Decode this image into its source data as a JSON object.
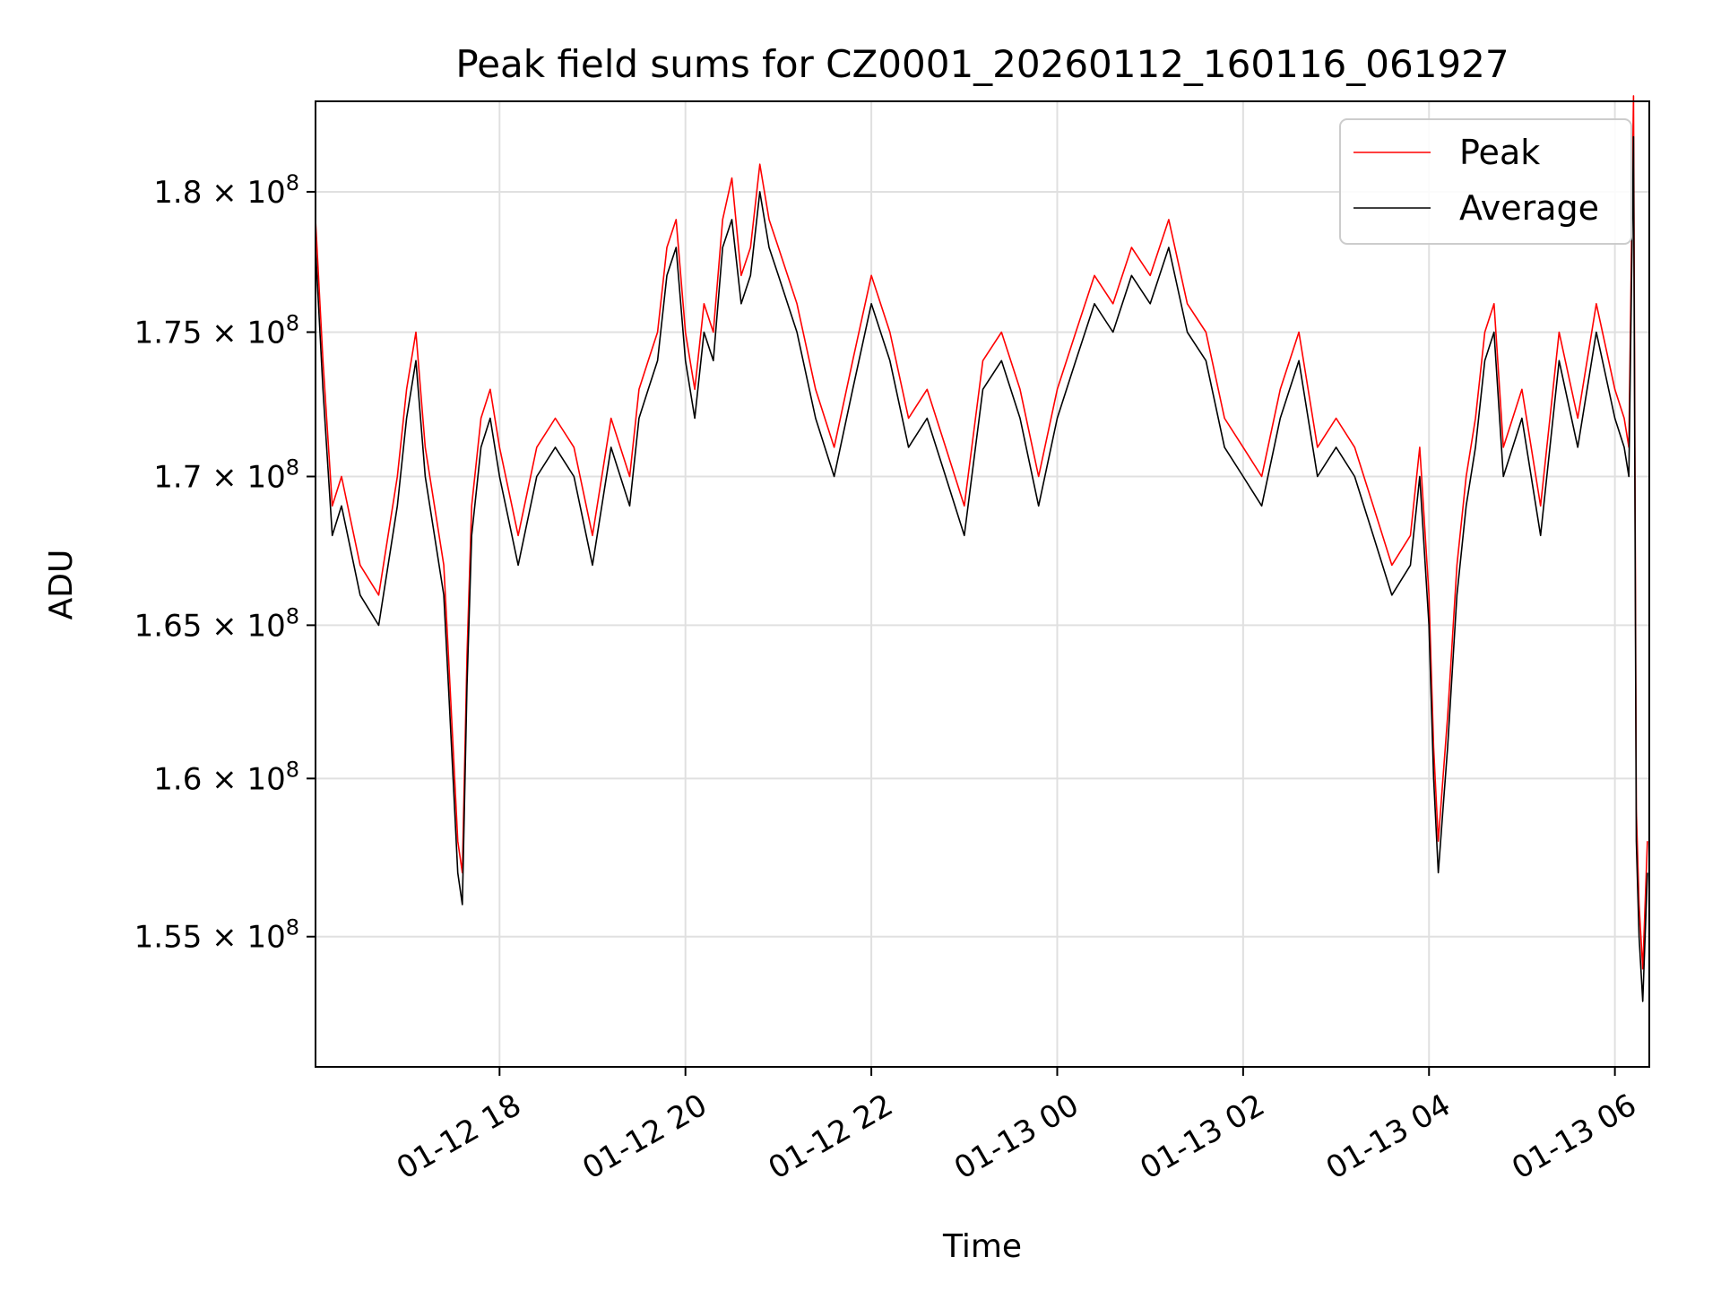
{
  "chart_data": {
    "type": "line",
    "title": "Peak field sums for CZ0001_20260112_160116_061927",
    "xlabel": "Time",
    "ylabel": "ADU",
    "y_scale": "log",
    "ylim": [
      151000000,
      183300000
    ],
    "x_range_hours": [
      16.02,
      30.37
    ],
    "grid": true,
    "legend_position": "upper right",
    "x_ticks": [
      {
        "hour": 18,
        "label": "01-12 18"
      },
      {
        "hour": 20,
        "label": "01-12 20"
      },
      {
        "hour": 22,
        "label": "01-12 22"
      },
      {
        "hour": 24,
        "label": "01-13 00"
      },
      {
        "hour": 26,
        "label": "01-13 02"
      },
      {
        "hour": 28,
        "label": "01-13 04"
      },
      {
        "hour": 30,
        "label": "01-13 06"
      }
    ],
    "y_ticks": [
      {
        "value": 155000000,
        "mantissa": "1.55",
        "exponent": "8"
      },
      {
        "value": 160000000,
        "mantissa": "1.6",
        "exponent": "8"
      },
      {
        "value": 165000000,
        "mantissa": "1.65",
        "exponent": "8"
      },
      {
        "value": 170000000,
        "mantissa": "1.7",
        "exponent": "8"
      },
      {
        "value": 175000000,
        "mantissa": "1.75",
        "exponent": "8"
      },
      {
        "value": 180000000,
        "mantissa": "1.8",
        "exponent": "8"
      }
    ],
    "series": [
      {
        "name": "Peak",
        "color": "#ff0000"
      },
      {
        "name": "Average",
        "color": "#000000"
      }
    ],
    "x_hours": [
      16.02,
      16.1,
      16.2,
      16.3,
      16.5,
      16.7,
      16.9,
      17.0,
      17.1,
      17.2,
      17.3,
      17.4,
      17.45,
      17.5,
      17.55,
      17.6,
      17.65,
      17.7,
      17.8,
      17.9,
      18.0,
      18.2,
      18.4,
      18.6,
      18.8,
      19.0,
      19.2,
      19.4,
      19.5,
      19.6,
      19.7,
      19.8,
      19.9,
      20.0,
      20.1,
      20.2,
      20.3,
      20.4,
      20.5,
      20.6,
      20.7,
      20.8,
      20.9,
      21.0,
      21.2,
      21.4,
      21.6,
      21.8,
      22.0,
      22.2,
      22.4,
      22.6,
      22.8,
      23.0,
      23.2,
      23.4,
      23.6,
      23.8,
      24.0,
      24.2,
      24.4,
      24.6,
      24.8,
      25.0,
      25.2,
      25.4,
      25.6,
      25.8,
      26.0,
      26.2,
      26.4,
      26.6,
      26.8,
      27.0,
      27.2,
      27.4,
      27.6,
      27.8,
      27.9,
      28.0,
      28.05,
      28.1,
      28.15,
      28.2,
      28.3,
      28.4,
      28.5,
      28.6,
      28.7,
      28.8,
      29.0,
      29.2,
      29.4,
      29.6,
      29.8,
      30.0,
      30.1,
      30.15,
      30.2,
      30.23,
      30.26,
      30.3,
      30.35
    ],
    "average": [
      178000000,
      173000000,
      168000000,
      169000000,
      166000000,
      165000000,
      169000000,
      172000000,
      174000000,
      170000000,
      168000000,
      166000000,
      163000000,
      160000000,
      157000000,
      156000000,
      163000000,
      168000000,
      171000000,
      172000000,
      170000000,
      167000000,
      170000000,
      171000000,
      170000000,
      167000000,
      171000000,
      169000000,
      172000000,
      173000000,
      174000000,
      177000000,
      178000000,
      174000000,
      172000000,
      175000000,
      174000000,
      178000000,
      179000000,
      176000000,
      177000000,
      180000000,
      178000000,
      177000000,
      175000000,
      172000000,
      170000000,
      173000000,
      176000000,
      174000000,
      171000000,
      172000000,
      170000000,
      168000000,
      173000000,
      174000000,
      172000000,
      169000000,
      172000000,
      174000000,
      176000000,
      175000000,
      177000000,
      176000000,
      178000000,
      175000000,
      174000000,
      171000000,
      170000000,
      169000000,
      172000000,
      174000000,
      170000000,
      171000000,
      170000000,
      168000000,
      166000000,
      167000000,
      170000000,
      165000000,
      160000000,
      157000000,
      159000000,
      161000000,
      166000000,
      169000000,
      171000000,
      174000000,
      175000000,
      170000000,
      172000000,
      168000000,
      174000000,
      171000000,
      175000000,
      172000000,
      171000000,
      170000000,
      182000000,
      158000000,
      155000000,
      153000000,
      157000000
    ],
    "peak": [
      179000000,
      174000000,
      169000000,
      170000000,
      167000000,
      166000000,
      170000000,
      173000000,
      175000000,
      171000000,
      169000000,
      167000000,
      164000000,
      161000000,
      158000000,
      157000000,
      164000000,
      169000000,
      172000000,
      173000000,
      171000000,
      168000000,
      171000000,
      172000000,
      171000000,
      168000000,
      172000000,
      170000000,
      173000000,
      174000000,
      175000000,
      178000000,
      179000000,
      175000000,
      173000000,
      176000000,
      175000000,
      179000000,
      180500000,
      177000000,
      178000000,
      181000000,
      179000000,
      178000000,
      176000000,
      173000000,
      171000000,
      174000000,
      177000000,
      175000000,
      172000000,
      173000000,
      171000000,
      169000000,
      174000000,
      175000000,
      173000000,
      170000000,
      173000000,
      175000000,
      177000000,
      176000000,
      178000000,
      177000000,
      179000000,
      176000000,
      175000000,
      172000000,
      171000000,
      170000000,
      173000000,
      175000000,
      171000000,
      172000000,
      171000000,
      169000000,
      167000000,
      168000000,
      171000000,
      166000000,
      161000000,
      158000000,
      160000000,
      162000000,
      167000000,
      170000000,
      172000000,
      175000000,
      176000000,
      171000000,
      173000000,
      169000000,
      175000000,
      172000000,
      176000000,
      173000000,
      172000000,
      171000000,
      183500000,
      159000000,
      156000000,
      154000000,
      158000000
    ]
  }
}
